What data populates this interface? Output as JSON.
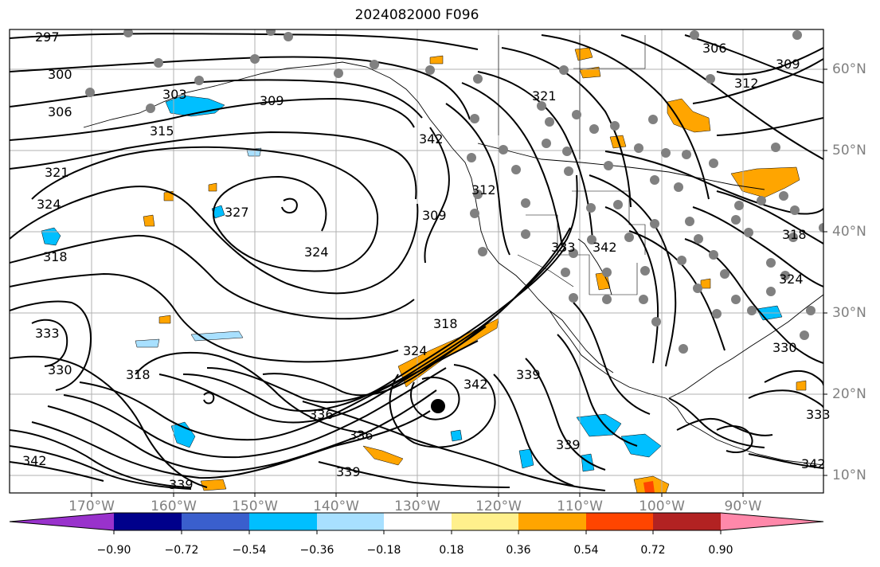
{
  "title": "2024082000 F096",
  "longitude_labels": [
    "170°W",
    "160°W",
    "150°W",
    "140°W",
    "130°W",
    "120°W",
    "110°W",
    "100°W",
    "90°W"
  ],
  "latitude_labels": [
    "60°N",
    "50°N",
    "40°N",
    "30°N",
    "20°N",
    "10°N"
  ],
  "colorbar": {
    "tick_labels": [
      "−0.90",
      "−0.72",
      "−0.54",
      "−0.36",
      "−0.18",
      "0.18",
      "0.36",
      "0.54",
      "0.72",
      "0.90"
    ],
    "colors": [
      "#9932cc",
      "#00008b",
      "#3a5fcd",
      "#00bfff",
      "#a8e0ff",
      "#ffffff",
      "#fff08c",
      "#ffa500",
      "#ff4500",
      "#b22222",
      "#ff88aa"
    ]
  },
  "contour_labels": [
    {
      "text": "297"
    },
    {
      "text": "300"
    },
    {
      "text": "306"
    },
    {
      "text": "303"
    },
    {
      "text": "309"
    },
    {
      "text": "315"
    },
    {
      "text": "321"
    },
    {
      "text": "324"
    },
    {
      "text": "327"
    },
    {
      "text": "318"
    },
    {
      "text": "324"
    },
    {
      "text": "333"
    },
    {
      "text": "330"
    },
    {
      "text": "318"
    },
    {
      "text": "342"
    },
    {
      "text": "339"
    },
    {
      "text": "336"
    },
    {
      "text": "336"
    },
    {
      "text": "339"
    },
    {
      "text": "318"
    },
    {
      "text": "324"
    },
    {
      "text": "342"
    },
    {
      "text": "339"
    },
    {
      "text": "339"
    },
    {
      "text": "309"
    },
    {
      "text": "312"
    },
    {
      "text": "321"
    },
    {
      "text": "342"
    },
    {
      "text": "333"
    },
    {
      "text": "342"
    },
    {
      "text": "306"
    },
    {
      "text": "309"
    },
    {
      "text": "312"
    },
    {
      "text": "318"
    },
    {
      "text": "324"
    },
    {
      "text": "330"
    },
    {
      "text": "333"
    },
    {
      "text": "342"
    }
  ],
  "colors": {
    "contour": "#000000",
    "grid": "#b0b0b0",
    "station_dot": "#808080",
    "axis_label": "#808080"
  }
}
